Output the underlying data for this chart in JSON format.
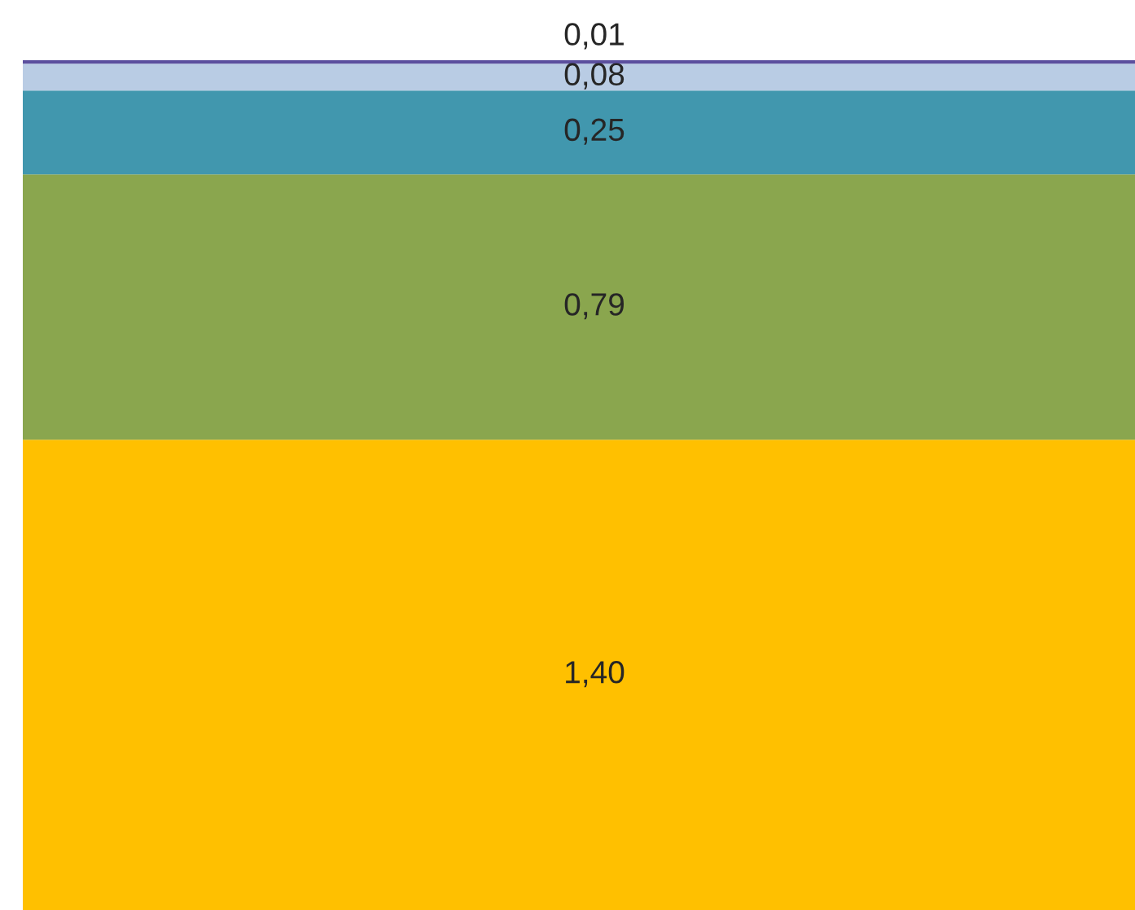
{
  "chart_data": {
    "type": "bar",
    "stacked": true,
    "categories": [
      null
    ],
    "series": [
      {
        "color": "#ffc000",
        "values": [
          1.4
        ],
        "value_labels": [
          "1,40"
        ]
      },
      {
        "color": "#8aa64e",
        "values": [
          0.79
        ],
        "value_labels": [
          "0,79"
        ]
      },
      {
        "color": "#4197ae",
        "values": [
          0.25
        ],
        "value_labels": [
          "0,25"
        ]
      },
      {
        "color": "#b9cce4",
        "values": [
          0.08
        ],
        "value_labels": [
          "0,08"
        ]
      },
      {
        "color": "#5b4f9e",
        "values": [
          0.01
        ],
        "value_labels": [
          "0,01"
        ]
      }
    ]
  }
}
